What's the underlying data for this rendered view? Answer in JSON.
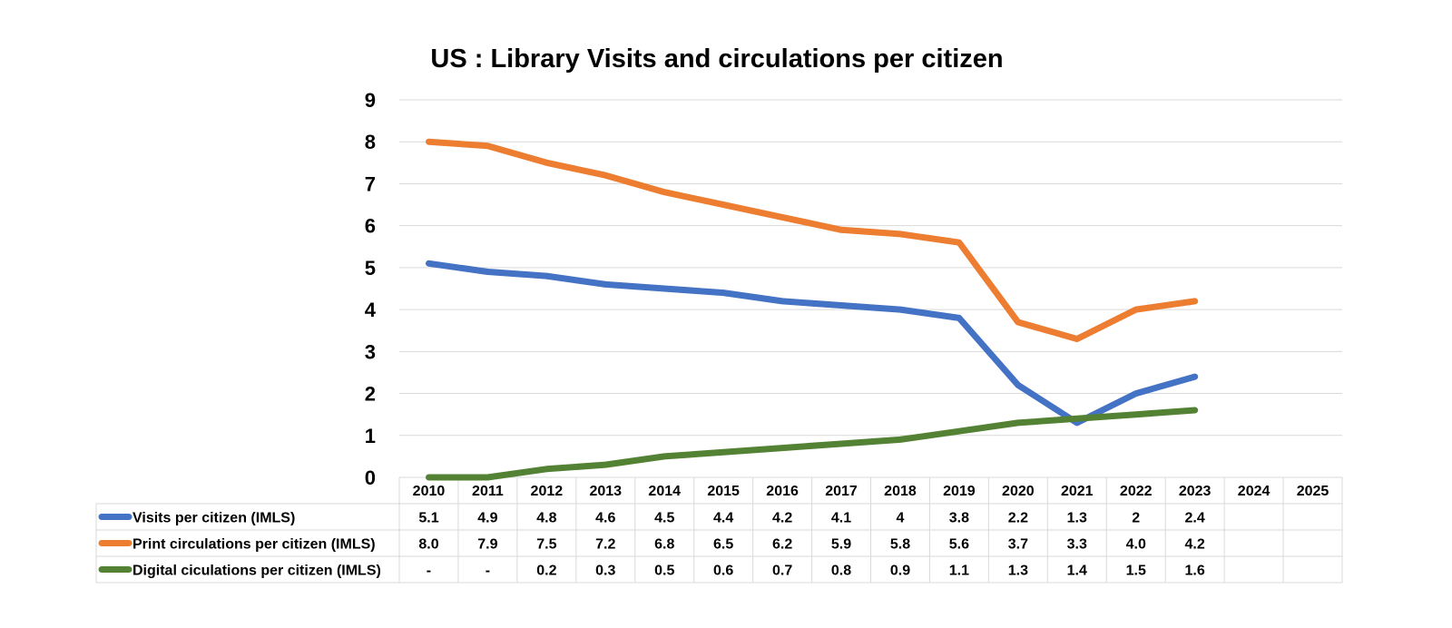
{
  "chart_data": {
    "type": "line",
    "title": "US : Library Visits and circulations per citizen",
    "xlabel": "",
    "ylabel": "",
    "ylim": [
      0,
      9
    ],
    "yticks": [
      "0",
      "1",
      "2",
      "3",
      "4",
      "5",
      "6",
      "7",
      "8",
      "9"
    ],
    "grid": true,
    "legend": "bottom data table",
    "categories": [
      "2010",
      "2011",
      "2012",
      "2013",
      "2014",
      "2015",
      "2016",
      "2017",
      "2018",
      "2019",
      "2020",
      "2021",
      "2022",
      "2023",
      "2024",
      "2025"
    ],
    "series": [
      {
        "name": "Visits per citizen (IMLS)",
        "color": "#4472c4",
        "values": [
          5.1,
          4.9,
          4.8,
          4.6,
          4.5,
          4.4,
          4.2,
          4.1,
          4.0,
          3.8,
          2.2,
          1.3,
          2.0,
          2.4,
          null,
          null
        ],
        "labels": [
          "5.1",
          "4.9",
          "4.8",
          "4.6",
          "4.5",
          "4.4",
          "4.2",
          "4.1",
          "4",
          "3.8",
          "2.2",
          "1.3",
          "2",
          "2.4",
          "",
          ""
        ]
      },
      {
        "name": "Print circulations per citizen (IMLS)",
        "color": "#ed7d31",
        "values": [
          8.0,
          7.9,
          7.5,
          7.2,
          6.8,
          6.5,
          6.2,
          5.9,
          5.8,
          5.6,
          3.7,
          3.3,
          4.0,
          4.2,
          null,
          null
        ],
        "labels": [
          "8.0",
          "7.9",
          "7.5",
          "7.2",
          "6.8",
          "6.5",
          "6.2",
          "5.9",
          "5.8",
          "5.6",
          "3.7",
          "3.3",
          "4.0",
          "4.2",
          "",
          ""
        ]
      },
      {
        "name": "Digital ciculations per citizen (IMLS)",
        "color": "#548235",
        "values": [
          0,
          0,
          0.2,
          0.3,
          0.5,
          0.6,
          0.7,
          0.8,
          0.9,
          1.1,
          1.3,
          1.4,
          1.5,
          1.6,
          null,
          null
        ],
        "labels": [
          "-",
          "-",
          "0.2",
          "0.3",
          "0.5",
          "0.6",
          "0.7",
          "0.8",
          "0.9",
          "1.1",
          "1.3",
          "1.4",
          "1.5",
          "1.6",
          "",
          ""
        ]
      }
    ]
  }
}
